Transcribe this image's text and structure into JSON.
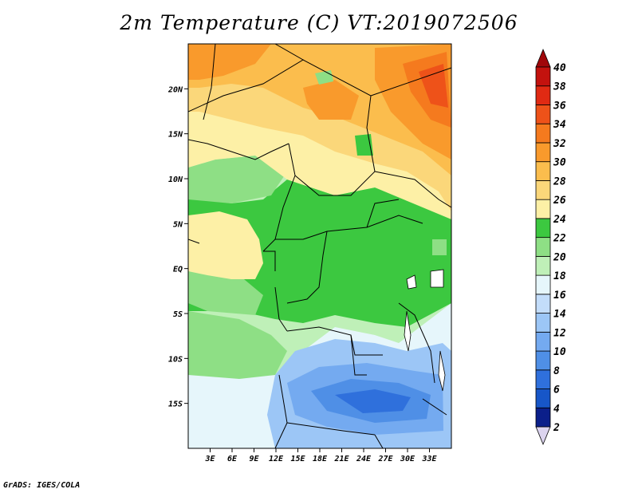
{
  "title": "2m Temperature (C) VT:2019072506",
  "footer": "GrADS: IGES/COLA",
  "map": {
    "lon_range": [
      0,
      36
    ],
    "lat_range": [
      -20,
      25
    ],
    "lon_ticks": [
      {
        "value": 3,
        "label": "3E"
      },
      {
        "value": 6,
        "label": "6E"
      },
      {
        "value": 9,
        "label": "9E"
      },
      {
        "value": 12,
        "label": "12E"
      },
      {
        "value": 15,
        "label": "15E"
      },
      {
        "value": 18,
        "label": "18E"
      },
      {
        "value": 21,
        "label": "21E"
      },
      {
        "value": 24,
        "label": "24E"
      },
      {
        "value": 27,
        "label": "27E"
      },
      {
        "value": 30,
        "label": "30E"
      },
      {
        "value": 33,
        "label": "33E"
      }
    ],
    "lat_ticks": [
      {
        "value": 20,
        "label": "20N"
      },
      {
        "value": 15,
        "label": "15N"
      },
      {
        "value": 10,
        "label": "10N"
      },
      {
        "value": 5,
        "label": "5N"
      },
      {
        "value": 0,
        "label": "EQ"
      },
      {
        "value": -5,
        "label": "5S"
      },
      {
        "value": -10,
        "label": "10S"
      },
      {
        "value": -15,
        "label": "15S"
      }
    ]
  },
  "colorbar": {
    "levels": [
      2,
      4,
      6,
      8,
      10,
      12,
      14,
      16,
      18,
      20,
      22,
      24,
      26,
      28,
      30,
      32,
      34,
      36,
      38,
      40
    ],
    "colors": [
      "#0b1f8a",
      "#1756c8",
      "#2f70dc",
      "#4f8fe6",
      "#74aaf0",
      "#9cc6f6",
      "#c3ddfa",
      "#e6f6fb",
      "#bff0b8",
      "#8edf85",
      "#3cc840",
      "#fdf0a6",
      "#fbd77a",
      "#fbbd4d",
      "#f99a2c",
      "#f57a1e",
      "#ee5219",
      "#e02a13",
      "#c3120e"
    ],
    "under_color": "#dcd4ef",
    "over_color": "#a0070a"
  }
}
